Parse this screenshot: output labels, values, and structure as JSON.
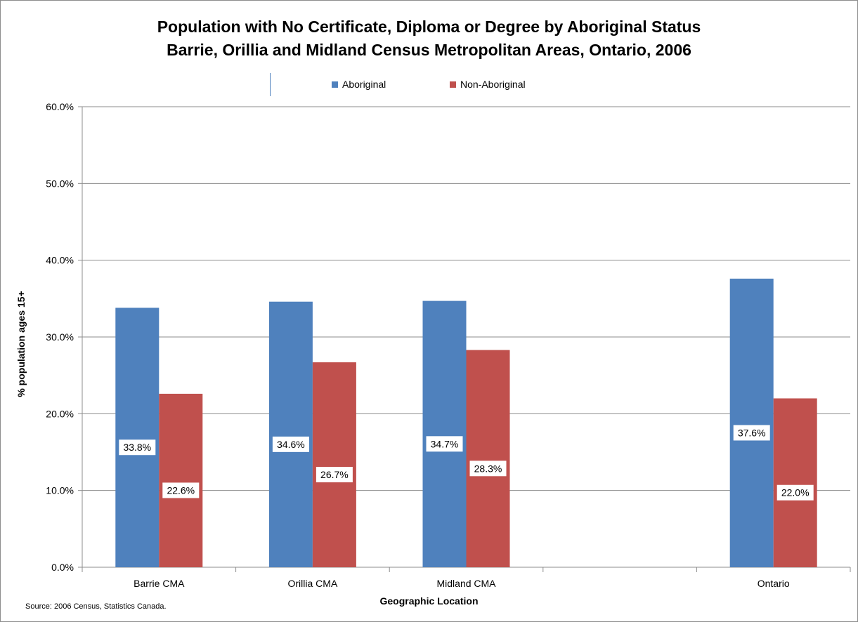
{
  "chart_data": {
    "type": "bar",
    "title": "Population with No Certificate, Diploma or Degree by Aboriginal Status",
    "subtitle": "Barrie, Orillia and Midland Census Metropolitan Areas, Ontario, 2006",
    "xlabel": "Geographic Location",
    "ylabel": "% population ages 15+",
    "ylim": [
      0,
      60
    ],
    "yticks": [
      "0.0%",
      "10.0%",
      "20.0%",
      "30.0%",
      "40.0%",
      "50.0%",
      "60.0%"
    ],
    "categories": [
      "Barrie CMA",
      "Orillia CMA",
      "Midland CMA",
      "",
      "Ontario"
    ],
    "series": [
      {
        "name": "Aboriginal",
        "color": "#4f81bd",
        "values": [
          33.8,
          34.6,
          34.7,
          null,
          37.6
        ],
        "labels": [
          "33.8%",
          "34.6%",
          "34.7%",
          "",
          "37.6%"
        ]
      },
      {
        "name": "Non-Aboriginal",
        "color": "#c0504d",
        "values": [
          22.6,
          26.7,
          28.3,
          null,
          22.0
        ],
        "labels": [
          "22.6%",
          "26.7%",
          "28.3%",
          "",
          "22.0%"
        ]
      }
    ],
    "grid": true,
    "legend_position": "top"
  },
  "source": "Source:  2006 Census, Statistics Canada."
}
